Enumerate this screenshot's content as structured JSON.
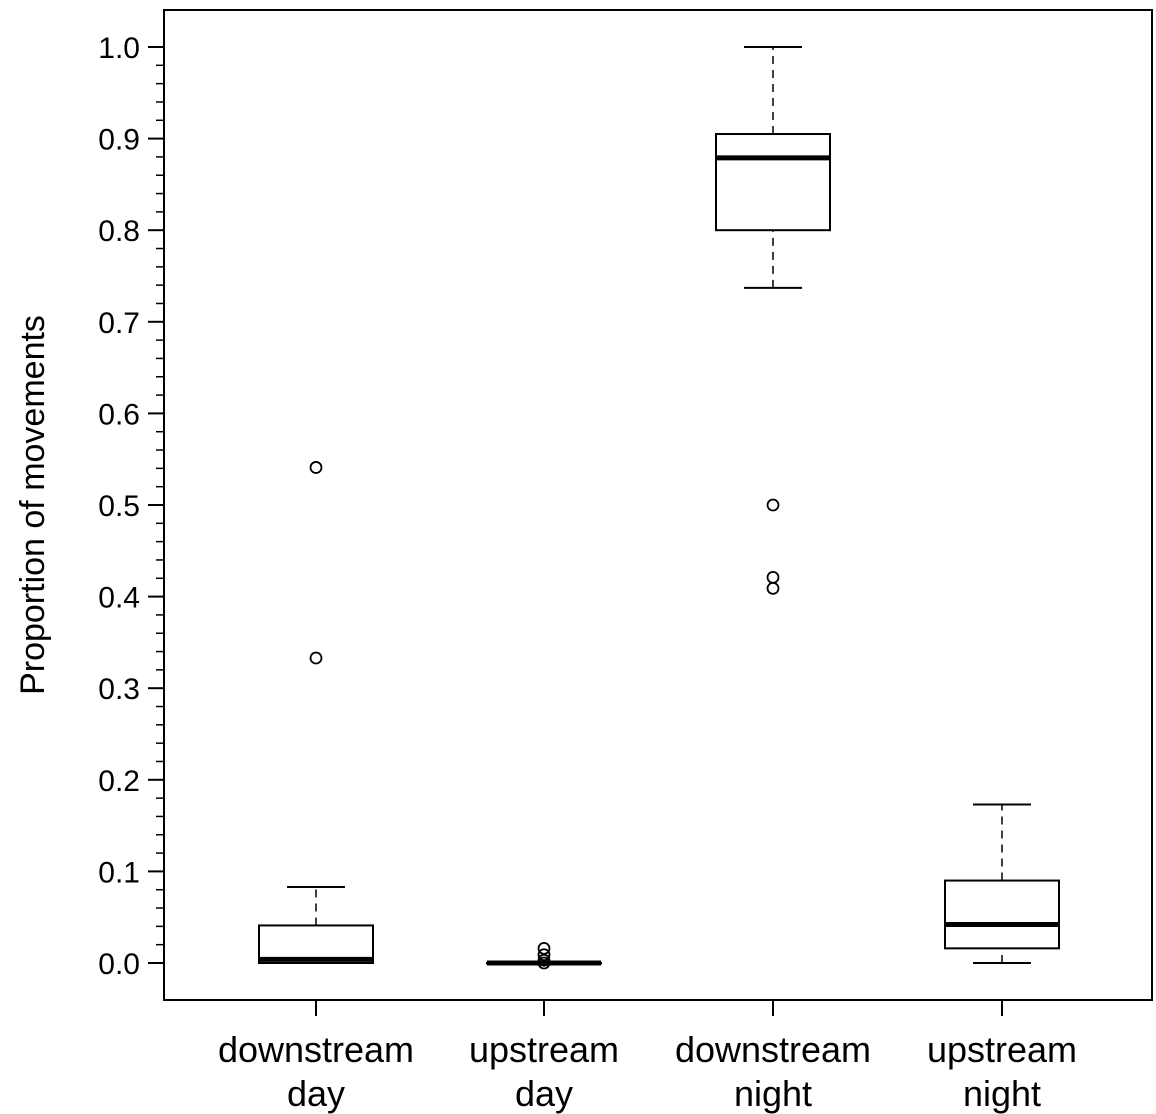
{
  "chart_data": {
    "type": "boxplot",
    "title": "",
    "xlabel": "",
    "ylabel": "Proportion of movements",
    "ylim": [
      -0.04,
      1.04
    ],
    "yticks": [
      "0.0",
      "0.1",
      "0.2",
      "0.3",
      "0.4",
      "0.5",
      "0.6",
      "0.7",
      "0.8",
      "0.9",
      "1.0"
    ],
    "ytick_values": [
      0.0,
      0.1,
      0.2,
      0.3,
      0.4,
      0.5,
      0.6,
      0.7,
      0.8,
      0.9,
      1.0
    ],
    "grid": false,
    "categories": [
      {
        "line1": "downstream",
        "line2": "day"
      },
      {
        "line1": "upstream",
        "line2": "day"
      },
      {
        "line1": "downstream",
        "line2": "night"
      },
      {
        "line1": "upstream",
        "line2": "night"
      }
    ],
    "boxes": [
      {
        "whisker_low": 0.0,
        "q1": 0.0,
        "median": 0.004,
        "q3": 0.041,
        "whisker_high": 0.083,
        "outliers": [
          0.333,
          0.541
        ]
      },
      {
        "whisker_low": 0.0,
        "q1": 0.0,
        "median": 0.0,
        "q3": 0.0,
        "whisker_high": 0.0,
        "outliers": [
          0.0,
          0.003,
          0.009,
          0.016
        ]
      },
      {
        "whisker_low": 0.737,
        "q1": 0.8,
        "median": 0.879,
        "q3": 0.905,
        "whisker_high": 1.0,
        "outliers": [
          0.409,
          0.421,
          0.5
        ]
      },
      {
        "whisker_low": 0.0,
        "q1": 0.016,
        "median": 0.042,
        "q3": 0.09,
        "whisker_high": 0.173,
        "outliers": []
      }
    ]
  }
}
